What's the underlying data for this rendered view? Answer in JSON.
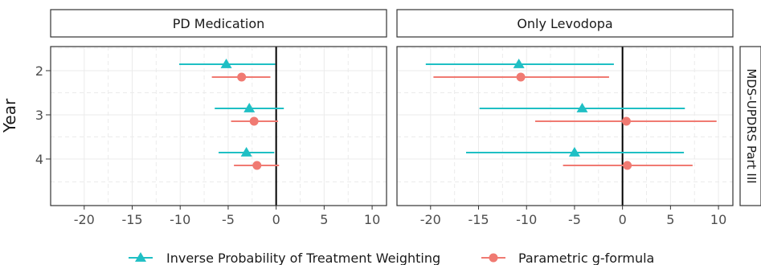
{
  "chart_data": {
    "type": "forest",
    "ylabel": "Year",
    "categories": [
      "2",
      "3",
      "4"
    ],
    "xlim": [
      -23.5,
      11.5
    ],
    "x_ticks": [
      -20,
      -15,
      -10,
      -5,
      0,
      5,
      10
    ],
    "x_tick_labels": [
      "-20",
      "-15",
      "-10",
      "-5",
      "0",
      "5",
      "10"
    ],
    "reference_line": 0,
    "grid": true,
    "legend_position": "bottom",
    "row_strip": "MDS-UPDRS Part III",
    "series": [
      {
        "name": "Inverse Probability of Treatment Weighting",
        "marker": "triangle",
        "color": "#1fbfc4"
      },
      {
        "name": "Parametric g-formula",
        "marker": "circle",
        "color": "#f07a72"
      }
    ],
    "panels": [
      {
        "title": "PD Medication",
        "data": [
          {
            "series": 0,
            "year": "2",
            "estimate": -5.2,
            "lower": -10.1,
            "upper": -0.1
          },
          {
            "series": 1,
            "year": "2",
            "estimate": -3.6,
            "lower": -6.7,
            "upper": -0.6
          },
          {
            "series": 0,
            "year": "3",
            "estimate": -2.8,
            "lower": -6.4,
            "upper": 0.8
          },
          {
            "series": 1,
            "year": "3",
            "estimate": -2.3,
            "lower": -4.7,
            "upper": 0.2
          },
          {
            "series": 0,
            "year": "4",
            "estimate": -3.1,
            "lower": -6.0,
            "upper": -0.2
          },
          {
            "series": 1,
            "year": "4",
            "estimate": -2.0,
            "lower": -4.4,
            "upper": 0.3
          }
        ]
      },
      {
        "title": "Only Levodopa",
        "data": [
          {
            "series": 0,
            "year": "2",
            "estimate": -10.8,
            "lower": -20.5,
            "upper": -0.9
          },
          {
            "series": 1,
            "year": "2",
            "estimate": -10.6,
            "lower": -19.7,
            "upper": -1.4
          },
          {
            "series": 0,
            "year": "3",
            "estimate": -4.2,
            "lower": -14.9,
            "upper": 6.5
          },
          {
            "series": 1,
            "year": "3",
            "estimate": 0.4,
            "lower": -9.1,
            "upper": 9.8
          },
          {
            "series": 0,
            "year": "4",
            "estimate": -5.0,
            "lower": -16.3,
            "upper": 6.4
          },
          {
            "series": 1,
            "year": "4",
            "estimate": 0.5,
            "lower": -6.2,
            "upper": 7.3
          }
        ]
      }
    ]
  }
}
